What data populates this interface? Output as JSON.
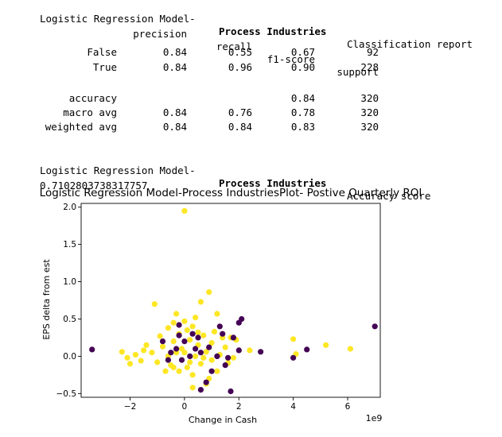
{
  "report": {
    "line1": {
      "prefix": "Logistic Regression Model-",
      "industry": "Process Industries",
      "suffix": "Classification report"
    },
    "headers": [
      "precision",
      "recall",
      "f1-score",
      "support"
    ],
    "rows": [
      {
        "label": "False",
        "precision": "0.84",
        "recall": "0.55",
        "f1": "0.67",
        "support": "92"
      },
      {
        "label": "True",
        "precision": "0.84",
        "recall": "0.96",
        "f1": "0.90",
        "support": "228"
      },
      {
        "label": "accuracy",
        "precision": "",
        "recall": "",
        "f1": "0.84",
        "support": "320"
      },
      {
        "label": "macro avg",
        "precision": "0.84",
        "recall": "0.76",
        "f1": "0.78",
        "support": "320"
      },
      {
        "label": "weighted avg",
        "precision": "0.84",
        "recall": "0.84",
        "f1": "0.83",
        "support": "320"
      }
    ]
  },
  "accuracy": {
    "prefix": "Logistic Regression Model-",
    "industry": "Process Industries",
    "suffix": "Accuracy score",
    "value": "0.7102803738317757"
  },
  "chart_data": {
    "type": "scatter",
    "title": "Logistic Regression Model-Process IndustriesPlot- Postive Quarterly ROI",
    "xlabel": "Change in Cash",
    "ylabel": "EPS delta from est",
    "x_offset_text": "1e9",
    "xlim": [
      -3.8,
      7.2
    ],
    "ylim": [
      -0.55,
      2.05
    ],
    "xticks": [
      -2,
      0,
      2,
      4,
      6
    ],
    "xtick_labels": [
      "−2",
      "0",
      "2",
      "4",
      "6"
    ],
    "yticks": [
      -0.5,
      0.0,
      0.5,
      1.0,
      1.5,
      2.0
    ],
    "ytick_labels": [
      "−0.5",
      "0.0",
      "0.5",
      "1.0",
      "1.5",
      "2.0"
    ],
    "colors": {
      "True": "#fde725",
      "False": "#440154"
    },
    "series": [
      {
        "name": "True",
        "points": [
          [
            0.0,
            1.95
          ],
          [
            0.9,
            0.86
          ],
          [
            -1.1,
            0.7
          ],
          [
            0.6,
            0.73
          ],
          [
            -0.3,
            0.57
          ],
          [
            1.2,
            0.57
          ],
          [
            -0.4,
            0.45
          ],
          [
            0.0,
            0.47
          ],
          [
            0.4,
            0.52
          ],
          [
            0.3,
            0.4
          ],
          [
            -0.2,
            0.3
          ],
          [
            0.7,
            0.28
          ],
          [
            1.1,
            0.33
          ],
          [
            1.7,
            0.25
          ],
          [
            1.9,
            0.22
          ],
          [
            -1.4,
            0.15
          ],
          [
            -0.8,
            0.13
          ],
          [
            -0.4,
            0.2
          ],
          [
            0.2,
            0.22
          ],
          [
            0.5,
            0.15
          ],
          [
            1.5,
            0.12
          ],
          [
            2.4,
            0.08
          ],
          [
            -2.3,
            0.06
          ],
          [
            -1.8,
            0.02
          ],
          [
            -1.2,
            0.05
          ],
          [
            -0.6,
            0.0
          ],
          [
            0.0,
            0.05
          ],
          [
            0.4,
            0.0
          ],
          [
            0.8,
            0.06
          ],
          [
            1.3,
            0.02
          ],
          [
            -2.1,
            -0.02
          ],
          [
            -1.6,
            -0.06
          ],
          [
            -1.0,
            -0.08
          ],
          [
            -0.5,
            -0.12
          ],
          [
            0.1,
            -0.15
          ],
          [
            0.6,
            -0.1
          ],
          [
            1.0,
            -0.05
          ],
          [
            1.6,
            -0.09
          ],
          [
            -0.2,
            -0.2
          ],
          [
            0.3,
            -0.25
          ],
          [
            0.9,
            -0.3
          ],
          [
            -0.7,
            -0.2
          ],
          [
            1.8,
            -0.02
          ],
          [
            -2.0,
            -0.1
          ],
          [
            0.3,
            -0.42
          ],
          [
            0.8,
            -0.37
          ],
          [
            -0.1,
            0.1
          ],
          [
            -0.9,
            0.27
          ],
          [
            0.1,
            0.35
          ],
          [
            0.5,
            0.32
          ],
          [
            -0.3,
            0.05
          ],
          [
            1.0,
            0.18
          ],
          [
            -1.5,
            0.08
          ],
          [
            0.7,
            -0.02
          ],
          [
            1.4,
            0.25
          ],
          [
            -0.6,
            0.38
          ],
          [
            4.0,
            0.23
          ],
          [
            4.1,
            0.03
          ],
          [
            5.2,
            0.15
          ],
          [
            6.1,
            0.1
          ],
          [
            0.2,
            -0.08
          ],
          [
            -0.4,
            -0.15
          ],
          [
            1.2,
            -0.2
          ]
        ]
      },
      {
        "name": "False",
        "points": [
          [
            -3.4,
            0.09
          ],
          [
            7.0,
            0.4
          ],
          [
            2.1,
            0.5
          ],
          [
            2.0,
            0.45
          ],
          [
            1.4,
            0.3
          ],
          [
            1.8,
            0.25
          ],
          [
            -0.8,
            0.2
          ],
          [
            -0.2,
            0.42
          ],
          [
            0.4,
            0.1
          ],
          [
            0.6,
            0.05
          ],
          [
            0.9,
            0.12
          ],
          [
            1.2,
            0.0
          ],
          [
            1.6,
            -0.02
          ],
          [
            2.0,
            0.08
          ],
          [
            2.8,
            0.06
          ],
          [
            4.5,
            0.09
          ],
          [
            4.0,
            -0.02
          ],
          [
            -0.5,
            0.05
          ],
          [
            -0.1,
            -0.05
          ],
          [
            0.3,
            0.3
          ],
          [
            0.0,
            0.2
          ],
          [
            -0.6,
            -0.05
          ],
          [
            1.0,
            -0.2
          ],
          [
            0.8,
            -0.35
          ],
          [
            0.6,
            -0.45
          ],
          [
            1.7,
            -0.47
          ],
          [
            1.5,
            -0.12
          ],
          [
            -0.3,
            0.1
          ],
          [
            0.2,
            0.0
          ],
          [
            0.5,
            0.25
          ],
          [
            -0.2,
            0.28
          ],
          [
            1.3,
            0.4
          ]
        ]
      }
    ]
  }
}
